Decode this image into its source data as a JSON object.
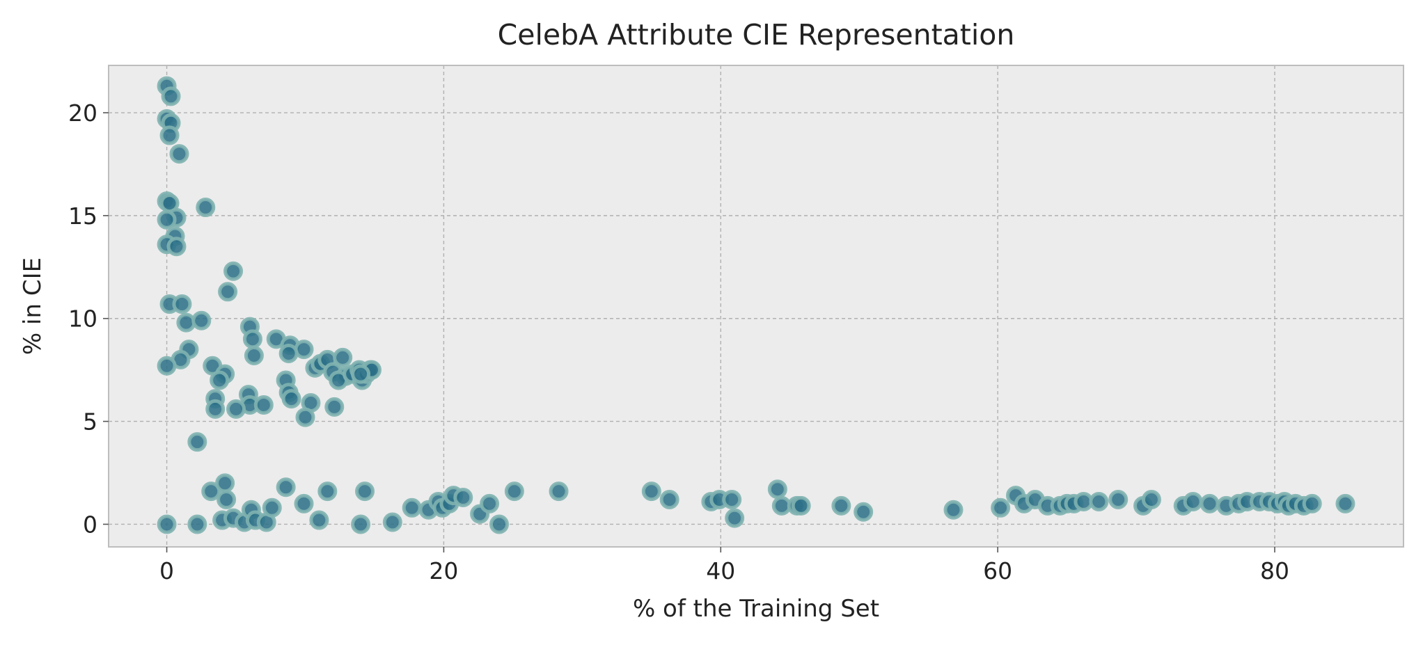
{
  "chart_data": {
    "type": "scatter",
    "title": "CelebA Attribute CIE Representation",
    "xlabel": "% of the Training Set",
    "ylabel": "% in CIE",
    "xlim": [
      -4.2,
      89.3
    ],
    "ylim": [
      -1.1,
      22.3
    ],
    "xticks": [
      0,
      20,
      40,
      60,
      80
    ],
    "yticks": [
      0,
      5,
      10,
      15,
      20
    ],
    "grid": true,
    "colors": {
      "background": "#ececec",
      "marker_fill": "#2a6f87",
      "marker_edge": "#7fb2b0",
      "frame": "#bdbdbd"
    },
    "points": [
      [
        0.0,
        21.3
      ],
      [
        0.3,
        20.8
      ],
      [
        0.0,
        19.7
      ],
      [
        0.3,
        19.5
      ],
      [
        0.2,
        18.9
      ],
      [
        0.9,
        18.0
      ],
      [
        0.0,
        15.7
      ],
      [
        0.2,
        15.6
      ],
      [
        2.8,
        15.4
      ],
      [
        0.7,
        14.9
      ],
      [
        0.0,
        14.8
      ],
      [
        0.6,
        14.0
      ],
      [
        0.0,
        13.6
      ],
      [
        0.7,
        13.5
      ],
      [
        4.8,
        12.3
      ],
      [
        4.4,
        11.3
      ],
      [
        0.2,
        10.7
      ],
      [
        1.1,
        10.7
      ],
      [
        1.4,
        9.8
      ],
      [
        2.5,
        9.9
      ],
      [
        6.0,
        9.6
      ],
      [
        6.2,
        9.0
      ],
      [
        6.3,
        8.2
      ],
      [
        7.9,
        9.0
      ],
      [
        8.9,
        8.7
      ],
      [
        9.9,
        8.5
      ],
      [
        8.8,
        8.3
      ],
      [
        1.6,
        8.5
      ],
      [
        1.0,
        8.0
      ],
      [
        0.0,
        7.7
      ],
      [
        3.3,
        7.7
      ],
      [
        4.2,
        7.3
      ],
      [
        3.8,
        7.0
      ],
      [
        10.7,
        7.6
      ],
      [
        11.1,
        7.8
      ],
      [
        11.6,
        8.0
      ],
      [
        12.7,
        8.1
      ],
      [
        12.0,
        7.4
      ],
      [
        12.9,
        7.2
      ],
      [
        12.4,
        7.0
      ],
      [
        13.4,
        7.3
      ],
      [
        13.9,
        7.5
      ],
      [
        14.1,
        7.0
      ],
      [
        14.4,
        7.3
      ],
      [
        14.7,
        7.5
      ],
      [
        14.8,
        7.5
      ],
      [
        14.0,
        7.3
      ],
      [
        8.6,
        7.0
      ],
      [
        8.8,
        6.4
      ],
      [
        9.0,
        6.1
      ],
      [
        3.5,
        6.1
      ],
      [
        3.5,
        5.6
      ],
      [
        5.9,
        6.3
      ],
      [
        6.0,
        5.8
      ],
      [
        5.0,
        5.6
      ],
      [
        7.0,
        5.8
      ],
      [
        10.4,
        5.9
      ],
      [
        10.0,
        5.2
      ],
      [
        12.1,
        5.7
      ],
      [
        2.2,
        4.0
      ],
      [
        3.2,
        1.6
      ],
      [
        4.2,
        2.0
      ],
      [
        4.3,
        1.2
      ],
      [
        8.6,
        1.8
      ],
      [
        11.6,
        1.6
      ],
      [
        14.3,
        1.6
      ],
      [
        9.9,
        1.0
      ],
      [
        4.0,
        0.2
      ],
      [
        4.8,
        0.3
      ],
      [
        5.6,
        0.1
      ],
      [
        6.1,
        0.7
      ],
      [
        6.4,
        0.2
      ],
      [
        7.2,
        0.1
      ],
      [
        7.6,
        0.8
      ],
      [
        11.0,
        0.2
      ],
      [
        14.0,
        0.0
      ],
      [
        16.3,
        0.1
      ],
      [
        17.7,
        0.8
      ],
      [
        18.9,
        0.7
      ],
      [
        19.6,
        1.1
      ],
      [
        19.9,
        0.8
      ],
      [
        20.4,
        1.0
      ],
      [
        20.7,
        1.4
      ],
      [
        21.4,
        1.3
      ],
      [
        22.6,
        0.5
      ],
      [
        23.3,
        1.0
      ],
      [
        24.0,
        0.0
      ],
      [
        25.1,
        1.6
      ],
      [
        28.3,
        1.6
      ],
      [
        35.0,
        1.6
      ],
      [
        36.3,
        1.2
      ],
      [
        39.3,
        1.1
      ],
      [
        39.9,
        1.2
      ],
      [
        40.8,
        1.2
      ],
      [
        41.0,
        0.3
      ],
      [
        44.1,
        1.7
      ],
      [
        44.4,
        0.9
      ],
      [
        45.5,
        0.9
      ],
      [
        45.8,
        0.9
      ],
      [
        48.7,
        0.9
      ],
      [
        50.3,
        0.6
      ],
      [
        56.8,
        0.7
      ],
      [
        60.2,
        0.8
      ],
      [
        61.3,
        1.4
      ],
      [
        61.9,
        1.0
      ],
      [
        62.7,
        1.2
      ],
      [
        63.6,
        0.9
      ],
      [
        64.5,
        0.9
      ],
      [
        65.0,
        1.0
      ],
      [
        65.5,
        1.0
      ],
      [
        66.2,
        1.1
      ],
      [
        67.3,
        1.1
      ],
      [
        68.7,
        1.2
      ],
      [
        70.5,
        0.9
      ],
      [
        71.1,
        1.2
      ],
      [
        73.4,
        0.9
      ],
      [
        74.1,
        1.1
      ],
      [
        75.3,
        1.0
      ],
      [
        76.5,
        0.9
      ],
      [
        77.4,
        1.0
      ],
      [
        78.0,
        1.1
      ],
      [
        78.9,
        1.1
      ],
      [
        79.6,
        1.1
      ],
      [
        80.2,
        1.0
      ],
      [
        80.7,
        1.1
      ],
      [
        81.0,
        0.9
      ],
      [
        81.5,
        1.0
      ],
      [
        82.1,
        0.9
      ],
      [
        82.7,
        1.0
      ],
      [
        85.1,
        1.0
      ],
      [
        0.0,
        0.0
      ],
      [
        2.2,
        0.0
      ]
    ]
  }
}
